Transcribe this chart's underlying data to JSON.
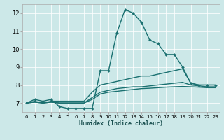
{
  "xlabel": "Humidex (Indice chaleur)",
  "ylabel": "",
  "xlim": [
    -0.5,
    23.5
  ],
  "ylim": [
    6.5,
    12.5
  ],
  "yticks": [
    7,
    8,
    9,
    10,
    11,
    12
  ],
  "xticks": [
    0,
    1,
    2,
    3,
    4,
    5,
    6,
    7,
    8,
    9,
    10,
    11,
    12,
    13,
    14,
    15,
    16,
    17,
    18,
    19,
    20,
    21,
    22,
    23
  ],
  "bg_color": "#cce8e8",
  "grid_color": "#b0d4d4",
  "line_color": "#1a7070",
  "lines": [
    {
      "x": [
        0,
        1,
        2,
        3,
        4,
        5,
        6,
        7,
        8,
        9,
        10,
        11,
        12,
        13,
        14,
        15,
        16,
        17,
        18,
        19,
        20,
        21,
        22,
        23
      ],
      "y": [
        7.0,
        7.2,
        7.1,
        7.2,
        6.8,
        6.7,
        6.7,
        6.7,
        6.7,
        8.8,
        8.8,
        10.9,
        12.2,
        12.0,
        11.5,
        10.5,
        10.3,
        9.7,
        9.7,
        9.0,
        8.1,
        8.0,
        8.0,
        8.0
      ],
      "marker": true
    },
    {
      "x": [
        0,
        1,
        2,
        3,
        4,
        5,
        6,
        7,
        8,
        9,
        10,
        11,
        12,
        13,
        14,
        15,
        16,
        17,
        18,
        19,
        20,
        21,
        22,
        23
      ],
      "y": [
        7.0,
        7.1,
        7.0,
        7.1,
        7.1,
        7.1,
        7.1,
        7.1,
        7.6,
        8.0,
        8.1,
        8.2,
        8.3,
        8.4,
        8.5,
        8.5,
        8.6,
        8.7,
        8.8,
        8.9,
        8.1,
        8.0,
        8.0,
        8.0
      ],
      "marker": false
    },
    {
      "x": [
        0,
        1,
        2,
        3,
        4,
        5,
        6,
        7,
        8,
        9,
        10,
        11,
        12,
        13,
        14,
        15,
        16,
        17,
        18,
        19,
        20,
        21,
        22,
        23
      ],
      "y": [
        7.0,
        7.05,
        7.0,
        7.05,
        7.0,
        7.0,
        7.0,
        7.0,
        7.3,
        7.6,
        7.7,
        7.8,
        7.85,
        7.9,
        7.9,
        7.95,
        8.0,
        8.05,
        8.1,
        8.15,
        8.0,
        7.95,
        7.9,
        7.9
      ],
      "marker": false
    },
    {
      "x": [
        0,
        1,
        2,
        3,
        4,
        5,
        6,
        7,
        8,
        9,
        10,
        11,
        12,
        13,
        14,
        15,
        16,
        17,
        18,
        19,
        20,
        21,
        22,
        23
      ],
      "y": [
        7.0,
        7.05,
        7.0,
        7.05,
        7.0,
        7.0,
        7.0,
        7.0,
        7.2,
        7.5,
        7.6,
        7.65,
        7.7,
        7.75,
        7.8,
        7.82,
        7.85,
        7.88,
        7.9,
        7.92,
        7.9,
        7.88,
        7.85,
        7.85
      ],
      "marker": false
    }
  ]
}
